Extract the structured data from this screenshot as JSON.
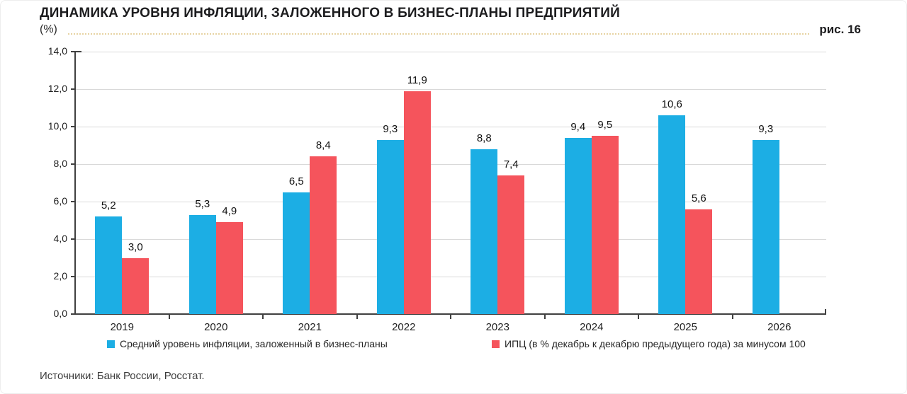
{
  "header": {
    "title": "ДИНАМИКА УРОВНЯ ИНФЛЯЦИИ, ЗАЛОЖЕННОГО В БИЗНЕС-ПЛАНЫ ПРЕДПРИЯТИЙ",
    "unit_label": "(%)",
    "figure_label": "рис. 16"
  },
  "chart_data": {
    "type": "bar",
    "categories": [
      "2019",
      "2020",
      "2021",
      "2022",
      "2023",
      "2024",
      "2025",
      "2026"
    ],
    "series": [
      {
        "name": "Средний уровень инфляции, заложенный в бизнес-планы",
        "color": "#1CAEE4",
        "values": [
          5.2,
          5.3,
          6.5,
          9.3,
          8.8,
          9.4,
          10.6,
          9.3
        ]
      },
      {
        "name": "ИПЦ (в % декабрь к декабрю предыдущего года) за минусом 100",
        "color": "#F5545C",
        "values": [
          3.0,
          4.9,
          8.4,
          11.9,
          7.4,
          9.5,
          5.6,
          null
        ]
      }
    ],
    "ylim": [
      0,
      14
    ],
    "ytick_step": 2,
    "ytick_labels": [
      "0,0",
      "2,0",
      "4,0",
      "6,0",
      "8,0",
      "10,0",
      "12,0",
      "14,0"
    ],
    "grid": true,
    "legend_position": "bottom",
    "value_label_decimal": "comma",
    "axis_color": "#404040",
    "gridline_color": "#d9d9d9"
  },
  "footer": {
    "source": "Источники: Банк России, Росстат."
  }
}
